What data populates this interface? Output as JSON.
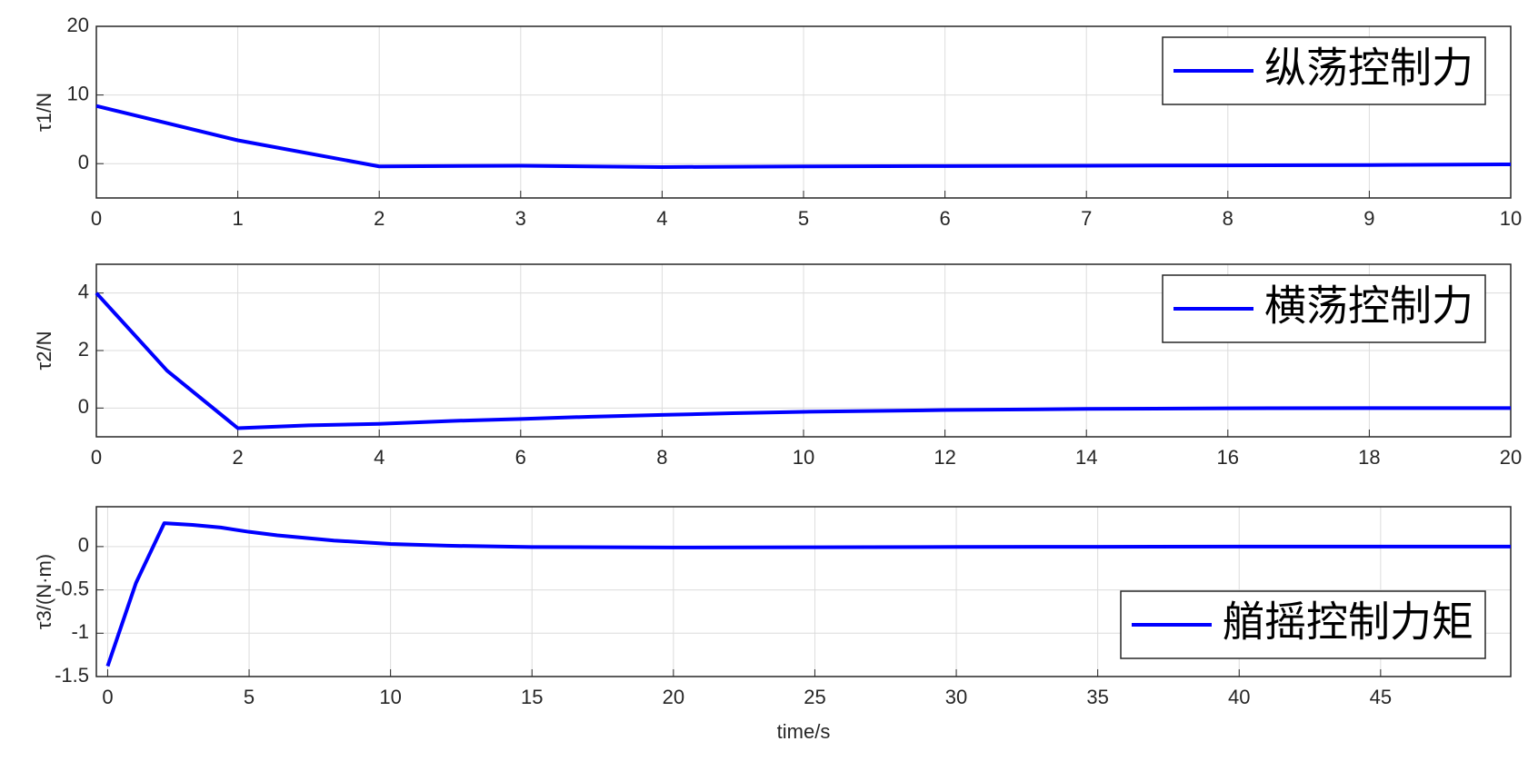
{
  "chart_data": [
    {
      "type": "line",
      "ylabel": "τ1/N",
      "x": [
        0,
        1,
        2,
        3,
        4,
        5,
        6,
        7,
        8,
        9,
        10
      ],
      "series": [
        {
          "name": "纵荡控制力",
          "color": "#0000ff",
          "values": [
            8.4,
            3.4,
            -0.4,
            -0.3,
            -0.5,
            -0.4,
            -0.35,
            -0.3,
            -0.25,
            -0.2,
            -0.1
          ]
        }
      ],
      "xlim": [
        0,
        10
      ],
      "xticks": [
        0,
        1,
        2,
        3,
        4,
        5,
        6,
        7,
        8,
        9,
        10
      ],
      "ylim": [
        -5,
        20
      ],
      "yticks": [
        0,
        10,
        20
      ],
      "grid": true,
      "legend": "top-right"
    },
    {
      "type": "line",
      "ylabel": "τ2/N",
      "x": [
        0,
        1,
        2,
        3,
        4,
        5,
        6,
        7,
        8,
        9,
        10,
        12,
        14,
        16,
        18,
        20
      ],
      "series": [
        {
          "name": "横荡控制力",
          "color": "#0000ff",
          "values": [
            4,
            1.3,
            -0.7,
            -0.6,
            -0.55,
            -0.45,
            -0.38,
            -0.3,
            -0.24,
            -0.18,
            -0.13,
            -0.07,
            -0.03,
            -0.01,
            0,
            0
          ]
        }
      ],
      "xlim": [
        0,
        20
      ],
      "xticks": [
        0,
        2,
        4,
        6,
        8,
        10,
        12,
        14,
        16,
        18,
        20
      ],
      "ylim": [
        -1,
        5
      ],
      "yticks": [
        0,
        2,
        4
      ],
      "grid": true,
      "legend": "top-right"
    },
    {
      "type": "line",
      "ylabel": "τ3/(N·m)",
      "xlabel": "time/s",
      "x": [
        0,
        1,
        2,
        3,
        4,
        5,
        6,
        7,
        8,
        9,
        10,
        12,
        15,
        20,
        25,
        30,
        35,
        40,
        45,
        49.6
      ],
      "series": [
        {
          "name": "艏摇控制力矩",
          "color": "#0000ff",
          "values": [
            -1.38,
            -0.42,
            0.27,
            0.25,
            0.22,
            0.17,
            0.13,
            0.1,
            0.07,
            0.05,
            0.03,
            0.01,
            -0.005,
            -0.01,
            -0.008,
            -0.004,
            -0.002,
            0,
            0,
            0
          ]
        }
      ],
      "xlim": [
        -0.4,
        49.6
      ],
      "xticks": [
        0,
        5,
        10,
        15,
        20,
        25,
        30,
        35,
        40,
        45
      ],
      "ylim": [
        -1.5,
        0.46
      ],
      "yticks": [
        -1.5,
        -1,
        -0.5,
        0
      ],
      "grid": true,
      "legend": "bottom-right"
    }
  ]
}
